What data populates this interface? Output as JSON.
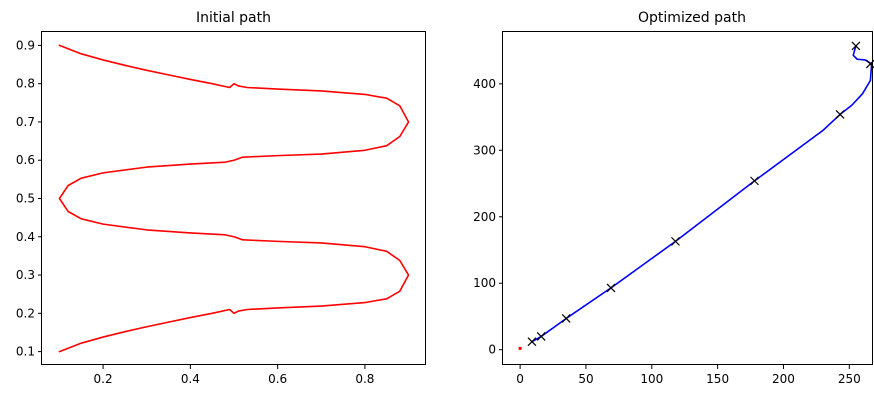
{
  "chart_data": [
    {
      "type": "line",
      "title": "Initial path",
      "xlabel": "",
      "ylabel": "",
      "xlim": [
        0.06,
        0.94
      ],
      "ylim": [
        0.065,
        0.935
      ],
      "xticks": [
        0.2,
        0.4,
        0.6,
        0.8
      ],
      "xtick_labels": [
        "0.2",
        "0.4",
        "0.6",
        "0.8"
      ],
      "yticks": [
        0.1,
        0.2,
        0.3,
        0.4,
        0.5,
        0.6,
        0.7,
        0.8,
        0.9
      ],
      "ytick_labels": [
        "0.1",
        "0.2",
        "0.3",
        "0.4",
        "0.5",
        "0.6",
        "0.7",
        "0.8",
        "0.9"
      ],
      "grid": false,
      "series": [
        {
          "color": "#ff0000",
          "x": [
            0.1,
            0.15,
            0.2,
            0.25,
            0.3,
            0.35,
            0.4,
            0.45,
            0.49,
            0.5,
            0.51,
            0.53,
            0.6,
            0.7,
            0.8,
            0.85,
            0.88,
            0.9,
            0.9,
            0.88,
            0.85,
            0.8,
            0.7,
            0.6,
            0.52,
            0.5,
            0.48,
            0.4,
            0.3,
            0.2,
            0.15,
            0.12,
            0.1,
            0.1,
            0.12,
            0.15,
            0.2,
            0.3,
            0.4,
            0.48,
            0.5,
            0.52,
            0.6,
            0.7,
            0.8,
            0.85,
            0.88,
            0.9,
            0.9,
            0.88,
            0.85,
            0.8,
            0.7,
            0.6,
            0.53,
            0.51,
            0.5,
            0.49,
            0.45,
            0.4,
            0.35,
            0.3,
            0.25,
            0.2,
            0.15,
            0.1
          ],
          "y": [
            0.1,
            0.122,
            0.138,
            0.152,
            0.165,
            0.177,
            0.189,
            0.2,
            0.21,
            0.2,
            0.206,
            0.21,
            0.214,
            0.219,
            0.228,
            0.238,
            0.258,
            0.3,
            0.3,
            0.338,
            0.362,
            0.374,
            0.384,
            0.388,
            0.392,
            0.4,
            0.405,
            0.41,
            0.418,
            0.433,
            0.447,
            0.466,
            0.5,
            0.5,
            0.534,
            0.553,
            0.567,
            0.582,
            0.59,
            0.595,
            0.6,
            0.608,
            0.612,
            0.616,
            0.626,
            0.638,
            0.662,
            0.7,
            0.7,
            0.742,
            0.762,
            0.772,
            0.781,
            0.786,
            0.79,
            0.794,
            0.8,
            0.79,
            0.8,
            0.811,
            0.823,
            0.835,
            0.848,
            0.862,
            0.878,
            0.9
          ]
        }
      ]
    },
    {
      "type": "line",
      "title": "Optimized path",
      "xlabel": "",
      "ylabel": "",
      "xlim": [
        -13,
        268
      ],
      "ylim": [
        -23,
        478
      ],
      "xticks": [
        0,
        50,
        100,
        150,
        200,
        250
      ],
      "xtick_labels": [
        "0",
        "50",
        "100",
        "150",
        "200",
        "250"
      ],
      "yticks": [
        0,
        100,
        200,
        300,
        400
      ],
      "ytick_labels": [
        "0",
        "100",
        "200",
        "300",
        "400"
      ],
      "grid": false,
      "series": [
        {
          "color": "#0000ff",
          "x": [
            9,
            16,
            35,
            69,
            118,
            178,
            230,
            243,
            252,
            260,
            266,
            267,
            262,
            256,
            253,
            255
          ],
          "y": [
            12,
            20,
            47,
            93,
            163,
            254,
            330,
            354,
            368,
            385,
            405,
            430,
            436,
            437,
            443,
            457
          ]
        }
      ],
      "markers": {
        "color": "#000000",
        "symbol": "x",
        "x": [
          9,
          16,
          35,
          69,
          118,
          178,
          243,
          266,
          255
        ],
        "y": [
          12,
          20,
          47,
          93,
          163,
          254,
          354,
          430,
          457
        ]
      },
      "start_point": {
        "color": "#ff0000",
        "x": 0,
        "y": 2
      }
    }
  ]
}
